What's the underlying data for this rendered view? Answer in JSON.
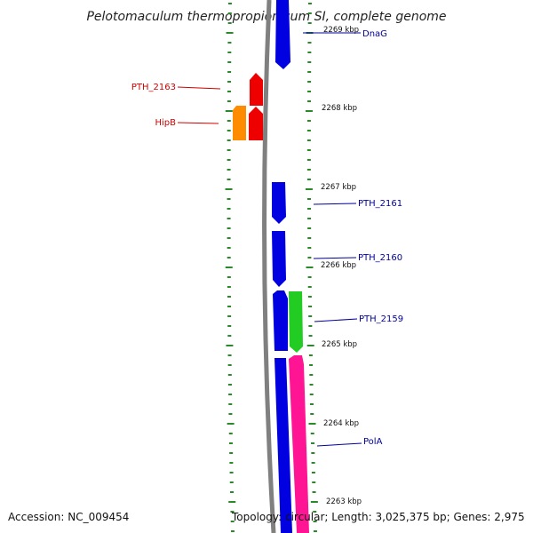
{
  "title": "Pelotomaculum thermopropionicum SI, complete genome",
  "footer": {
    "accession": "Accession: NC_009454",
    "topology": "Topology: circular; Length: 3,025,375 bp; Genes: 2,975"
  },
  "colors": {
    "backbone": "#808080",
    "tick": "#2a8a2a",
    "forward_label": "#d00000",
    "reverse_label": "#00009a"
  },
  "scale_labels": [
    "2269 kbp",
    "2268 kbp",
    "2267 kbp",
    "2266 kbp",
    "2265 kbp",
    "2264 kbp",
    "2263 kbp"
  ],
  "genes": [
    {
      "label": "DnaG",
      "color": "#0000e0",
      "strand": "reverse"
    },
    {
      "label": "PTH_2163",
      "color": "#ee0000",
      "strand": "forward"
    },
    {
      "label": "HipB",
      "color": "#ee0000",
      "strand": "forward"
    },
    {
      "label": "",
      "color": "#ff8c00",
      "strand": "forward"
    },
    {
      "label": "PTH_2161",
      "color": "#0000e0",
      "strand": "reverse"
    },
    {
      "label": "PTH_2160",
      "color": "#0000e0",
      "strand": "reverse"
    },
    {
      "label": "PTH_2159",
      "color": "#22cc22",
      "strand": "reverse"
    },
    {
      "label": "",
      "color": "#0000e0",
      "strand": "reverse"
    },
    {
      "label": "PolA",
      "color": "#ff1493",
      "strand": "reverse"
    }
  ]
}
